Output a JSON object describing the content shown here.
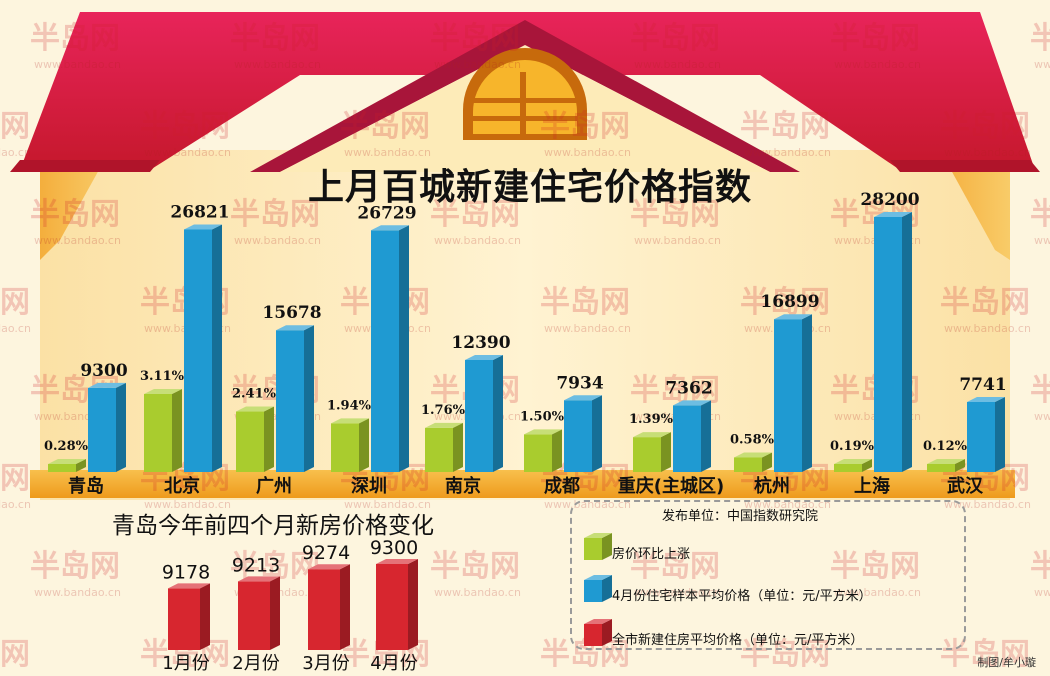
{
  "title": "上月百城新建住宅价格指数",
  "subtitle": "青岛今年前四个月新房价格变化",
  "source": "发布单位：中国指数研究院",
  "credit": "制图/牟小璇",
  "watermark": {
    "brand": "半岛网",
    "url": "www.bandao.cn"
  },
  "legend": [
    {
      "label": "房价环比上涨",
      "color": "#a9cc2e"
    },
    {
      "label": "4月份住宅样本平均价格（单位：元/平方米）",
      "color": "#1f9ad2"
    },
    {
      "label": "全市新建住房平均价格（单位：元/平方米）",
      "color": "#d7262f"
    }
  ],
  "chart_data": [
    {
      "type": "bar",
      "title": "上月百城新建住宅价格指数",
      "categories": [
        "青岛",
        "北京",
        "广州",
        "深圳",
        "南京",
        "成都",
        "重庆(主城区)",
        "杭州",
        "上海",
        "武汉"
      ],
      "series": [
        {
          "name": "房价环比上涨",
          "values": [
            0.28,
            3.11,
            2.41,
            1.94,
            1.76,
            1.5,
            1.39,
            0.58,
            0.19,
            0.12
          ],
          "labels": [
            "0.28%",
            "3.11%",
            "2.41%",
            "1.94%",
            "1.76%",
            "1.50%",
            "1.39%",
            "0.58%",
            "0.19%",
            "0.12%"
          ],
          "color": "#a9cc2e"
        },
        {
          "name": "4月份住宅样本平均价格（单位：元/平方米）",
          "values": [
            9300,
            26821,
            15678,
            26729,
            12390,
            7934,
            7362,
            16899,
            28200,
            7741
          ],
          "labels": [
            "9300",
            "26821",
            "15678",
            "26729",
            "12390",
            "7934",
            "7362",
            "16899",
            "28200",
            "7741"
          ],
          "color": "#1f9ad2"
        }
      ]
    },
    {
      "type": "bar",
      "title": "青岛今年前四个月新房价格变化",
      "categories": [
        "1月份",
        "2月份",
        "3月份",
        "4月份"
      ],
      "series": [
        {
          "name": "全市新建住房平均价格（单位：元/平方米）",
          "values": [
            9178,
            9213,
            9274,
            9300
          ],
          "labels": [
            "9178",
            "9213",
            "9274",
            "9300"
          ],
          "color": "#d7262f"
        }
      ]
    }
  ]
}
